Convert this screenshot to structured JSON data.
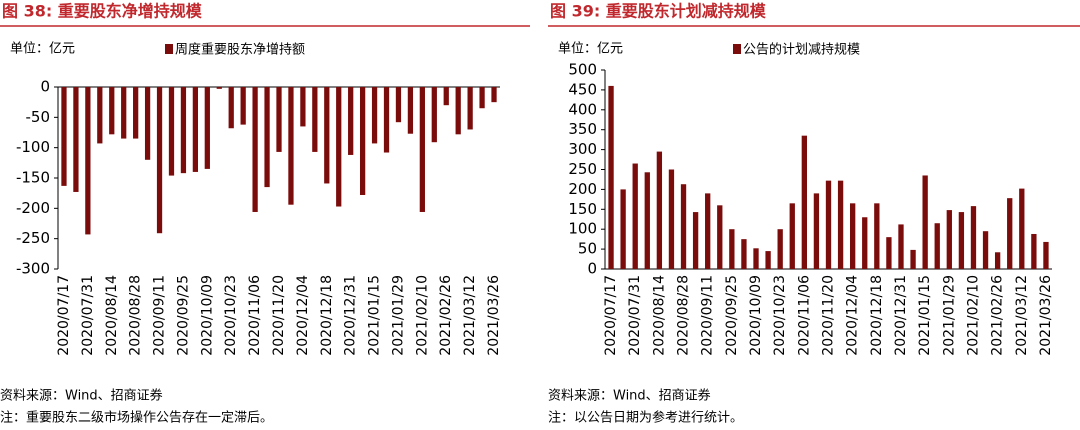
{
  "chart_data": [
    {
      "type": "bar",
      "title": "图 38:  重要股东净增持规模",
      "unit": "单位：亿元",
      "source": "资料来源：Wind、招商证券",
      "note": "注：重要股东二级市场操作公告存在一定滞后。",
      "categories": [
        "2020/07/17",
        null,
        "2020/07/31",
        null,
        "2020/08/14",
        null,
        "2020/08/28",
        null,
        "2020/09/11",
        null,
        "2020/09/25",
        null,
        "2020/10/09",
        null,
        "2020/10/23",
        null,
        "2020/11/06",
        null,
        "2020/11/20",
        null,
        "2020/12/04",
        null,
        "2020/12/18",
        null,
        "2020/12/31",
        null,
        "2021/01/15",
        null,
        "2021/01/29",
        null,
        "2021/02/10",
        null,
        "2021/02/26",
        null,
        "2021/03/12",
        null,
        "2021/03/26"
      ],
      "series": [
        {
          "name": "周度重要股东净增持额",
          "color": "#7b0c0c",
          "values": [
            -163,
            -173,
            -243,
            -93,
            -78,
            -85,
            -85,
            -120,
            -241,
            -146,
            -142,
            -140,
            -135,
            -3,
            -68,
            -62,
            -206,
            -165,
            -107,
            -194,
            -65,
            -107,
            -159,
            -197,
            -112,
            -178,
            -93,
            -108,
            -58,
            -77,
            -206,
            -91,
            -30,
            -78,
            -70,
            -35,
            -25
          ]
        }
      ],
      "ylim": [
        -300,
        0
      ],
      "yticks": [
        0,
        -50,
        -100,
        -150,
        -200,
        -250,
        -300
      ]
    },
    {
      "type": "bar",
      "title": "图 39:  重要股东计划减持规模",
      "unit": "单位：亿元",
      "source": "资料来源：Wind、招商证券",
      "note": "注：以公告日期为参考进行统计。",
      "categories": [
        "2020/07/17",
        null,
        "2020/07/31",
        null,
        "2020/08/14",
        null,
        "2020/08/28",
        null,
        "2020/09/11",
        null,
        "2020/09/25",
        null,
        "2020/10/09",
        null,
        "2020/10/23",
        null,
        "2020/11/06",
        null,
        "2020/11/20",
        null,
        "2020/12/04",
        null,
        "2020/12/18",
        null,
        "2020/12/31",
        null,
        "2021/01/15",
        null,
        "2021/01/29",
        null,
        "2021/02/10",
        null,
        "2021/02/26",
        null,
        "2021/03/12",
        null,
        "2021/03/26"
      ],
      "series": [
        {
          "name": "公告的计划减持规模",
          "color": "#7b0c0c",
          "values": [
            460,
            200,
            265,
            243,
            295,
            250,
            213,
            143,
            190,
            160,
            100,
            75,
            52,
            45,
            100,
            165,
            335,
            190,
            222,
            222,
            165,
            130,
            165,
            80,
            112,
            48,
            235,
            115,
            148,
            143,
            158,
            95,
            42,
            178,
            202,
            88,
            68
          ]
        }
      ],
      "ylim": [
        0,
        500
      ],
      "yticks": [
        0,
        50,
        100,
        150,
        200,
        250,
        300,
        350,
        400,
        450,
        500
      ]
    }
  ]
}
